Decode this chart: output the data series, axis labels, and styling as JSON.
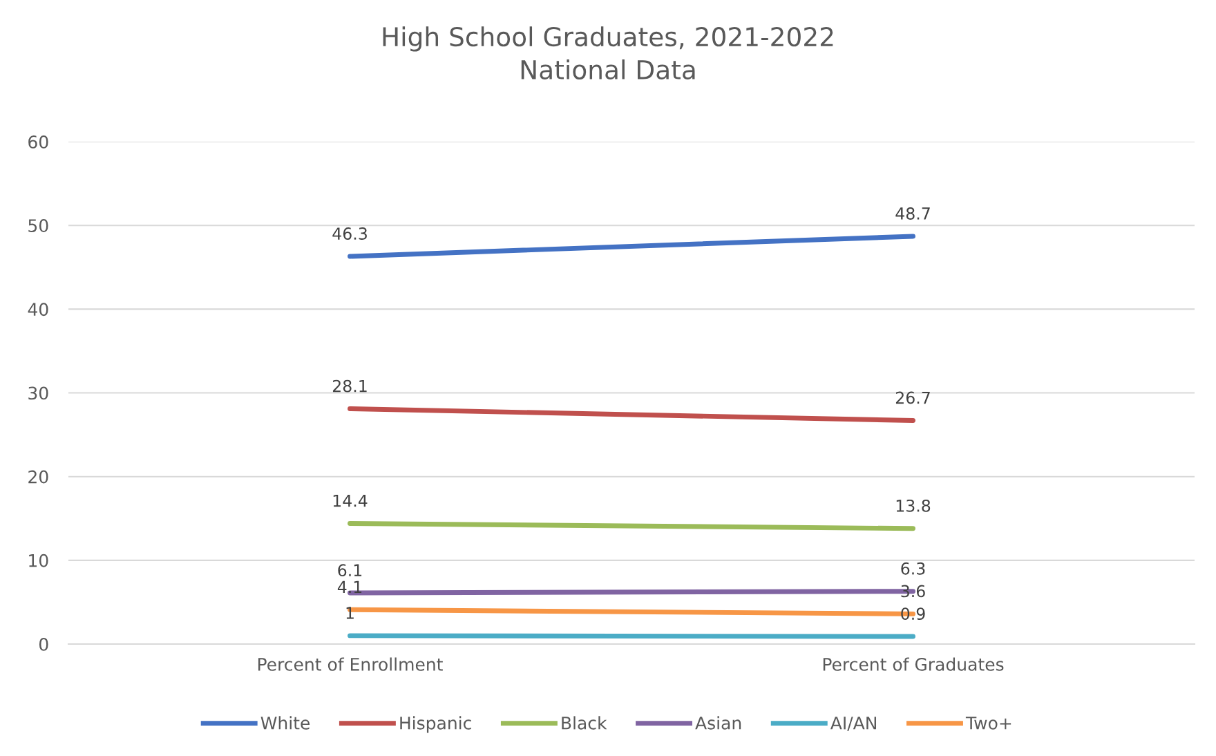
{
  "chart_data": {
    "type": "line",
    "title": "High School Graduates, 2021-2022\nNational Data",
    "categories": [
      "Percent of Enrollment",
      "Percent of Graduates"
    ],
    "series": [
      {
        "name": "White",
        "color": "#4472c4",
        "values": [
          46.3,
          48.7
        ]
      },
      {
        "name": "Hispanic",
        "color": "#c0504d",
        "values": [
          28.1,
          26.7
        ]
      },
      {
        "name": "Black",
        "color": "#9bbb59",
        "values": [
          14.4,
          13.8
        ]
      },
      {
        "name": "Asian",
        "color": "#8064a2",
        "values": [
          6.1,
          6.3
        ]
      },
      {
        "name": "AI/AN",
        "color": "#4bacc6",
        "values": [
          1,
          0.9
        ]
      },
      {
        "name": "Two+",
        "color": "#f79646",
        "values": [
          4.1,
          3.6
        ]
      }
    ],
    "ylim": [
      0,
      60
    ],
    "yticks": [
      0,
      10,
      20,
      30,
      40,
      50,
      60
    ],
    "grid": "y",
    "legend": "bottom",
    "data_labels": true,
    "marker": "none",
    "line_style": "solid"
  }
}
